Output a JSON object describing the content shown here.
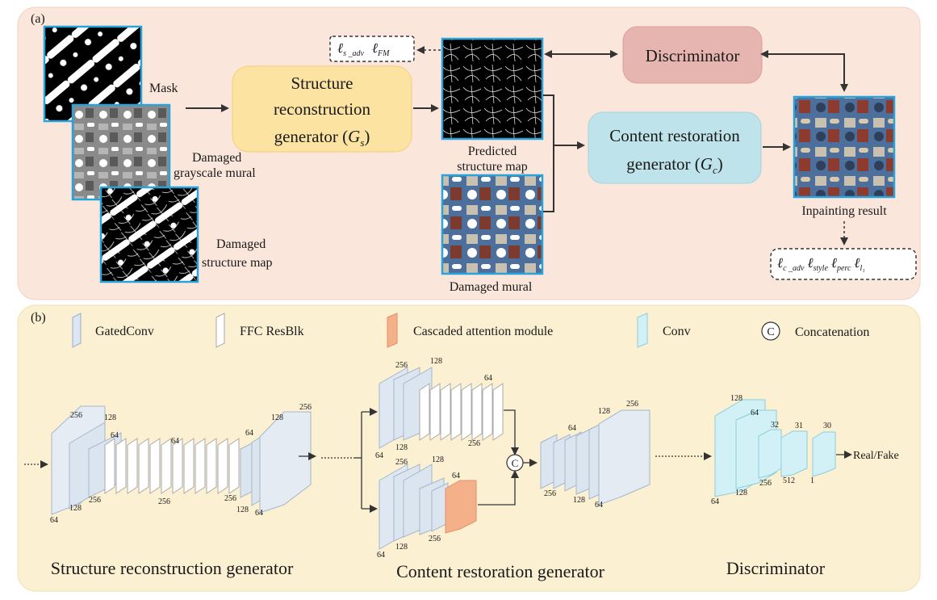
{
  "panel_a": {
    "label": "(a)",
    "mask_label": "Mask",
    "damaged_gray_label": [
      "Damaged",
      "grayscale mural"
    ],
    "damaged_structure_label": [
      "Damaged",
      "structure map"
    ],
    "structure_gen": {
      "line1": "Structure",
      "line2": "reconstruction",
      "line3": "generator (",
      "sym": "G",
      "sub": "s",
      "close": ")"
    },
    "predicted_label": [
      "Predicted",
      "structure map"
    ],
    "damaged_mural_label": "Damaged mural",
    "discriminator": "Discriminator",
    "content_gen": {
      "line1": "Content restoration",
      "line2": "generator (",
      "sym": "G",
      "sub": "c",
      "close": ")"
    },
    "inpainting_label": "Inpainting result",
    "loss_top": {
      "l1": "ℓ",
      "s1": "s _adv",
      "l2": "ℓ",
      "s2": "FM"
    },
    "loss_bottom": {
      "l1": "ℓ",
      "s1": "c _adv",
      "l2": "ℓ",
      "s2": "style",
      "l3": "ℓ",
      "s3": "perc",
      "l4": "ℓ",
      "s4": "l₁"
    }
  },
  "panel_b": {
    "label": "(b)",
    "legend": {
      "gated": "GatedConv",
      "ffc": "FFC ResBlk",
      "cascade": "Cascaded attention module",
      "conv": "Conv",
      "concat_symbol": "C",
      "concat": "Concatenation"
    },
    "structure_title": "Structure reconstruction generator",
    "content_title": "Content restoration generator",
    "disc_title": "Discriminator",
    "real_fake": "Real/Fake",
    "structure_dims": {
      "d256a": "256",
      "d128a": "128",
      "d64a": "64",
      "d64b": "64",
      "d64c": "64",
      "d128b": "128",
      "d256b": "256",
      "d256c": "256",
      "d256d": "256",
      "d128c": "128",
      "d64d": "64",
      "d64e": "64",
      "d128d": "128",
      "d256e": "256"
    },
    "content_dims": {
      "u256": "256",
      "u128": "128",
      "u64": "64",
      "u64b": "64",
      "u128b": "128",
      "u256b": "256",
      "l256": "256",
      "l128": "128",
      "l64": "64",
      "l64b": "64",
      "l128b": "128",
      "l256b": "256",
      "m64": "64",
      "m128": "128",
      "m256": "256",
      "m256b": "256",
      "m128b": "128",
      "m64b": "64"
    },
    "disc_dims": {
      "a128": "128",
      "a64": "64",
      "a32": "32",
      "a31": "31",
      "a30": "30",
      "b64": "64",
      "b128": "128",
      "b256": "256",
      "b512": "512",
      "b1": "1"
    }
  }
}
